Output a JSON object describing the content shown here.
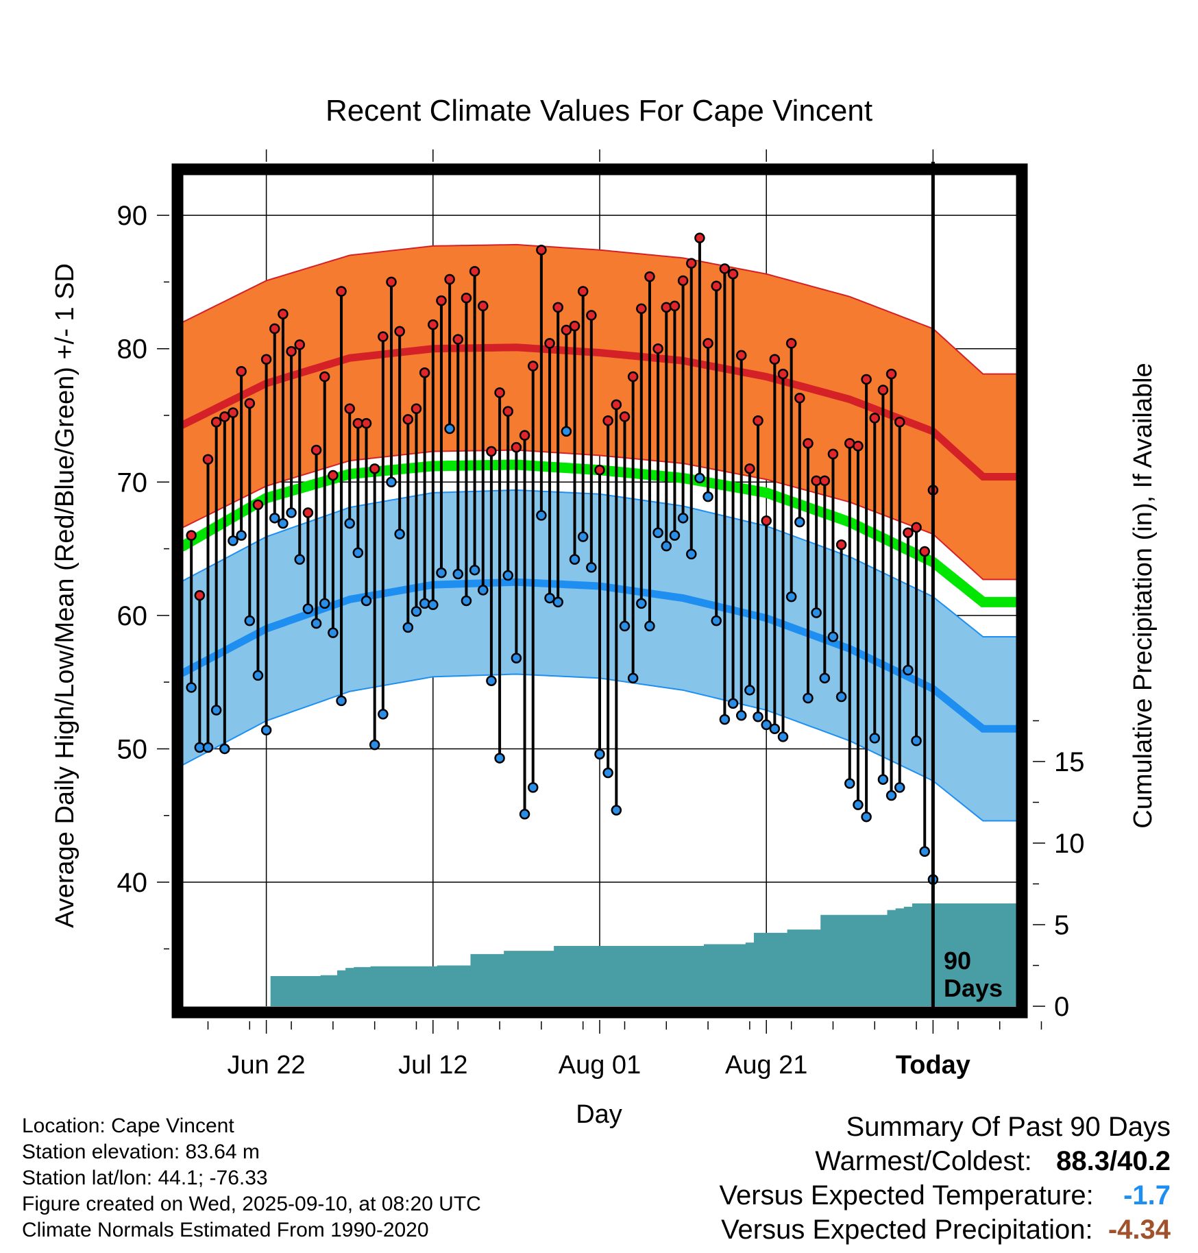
{
  "colors": {
    "high_band": "#f47b30",
    "high_line": "#d42027",
    "low_band": "#86c4ea",
    "low_line": "#1e8ff0",
    "mean_line": "#00e600",
    "precip_fill": "#499da5",
    "cold_value": "#1e8ff0",
    "dry_value": "#a0522d"
  },
  "chart_data": {
    "type": "line",
    "title": "Recent Climate Values For Cape Vincent",
    "xlabel": "Day",
    "ylabel": "Average Daily High/Low/Mean (Red/Blue/Green) +/- 1 SD",
    "ylabel_right": "Cumulative Precipitation (in), If Available",
    "x_range_days": [
      -87,
      13
    ],
    "ylim": [
      30.7,
      93.5
    ],
    "y_ticks": [
      40,
      50,
      60,
      70,
      80,
      90
    ],
    "precip_ticks": [
      0,
      5,
      10,
      15
    ],
    "precip_range": [
      0,
      20
    ],
    "x_ticks": [
      {
        "day": -77,
        "label": "Jun 22"
      },
      {
        "day": -57,
        "label": "Jul 12"
      },
      {
        "day": -37,
        "label": "Aug 01"
      },
      {
        "day": -17,
        "label": "Aug 21"
      },
      {
        "day": 3,
        "label": "Today"
      }
    ],
    "today_day": 3,
    "today_annotation": [
      "90",
      "Days"
    ],
    "normal_high": {
      "days": [
        -87,
        -77,
        -67,
        -57,
        -47,
        -37,
        -27,
        -17,
        -7,
        3,
        9
      ],
      "values": [
        74.3,
        77.4,
        79.3,
        80.0,
        80.1,
        79.7,
        79.1,
        77.9,
        76.2,
        73.8,
        70.4
      ]
    },
    "high_sd": 7.7,
    "normal_mean": {
      "days": [
        -87,
        -77,
        -67,
        -57,
        -47,
        -37,
        -27,
        -17,
        -7,
        3,
        9
      ],
      "values": [
        65.2,
        68.8,
        70.6,
        71.2,
        71.3,
        70.9,
        70.3,
        69.2,
        67.0,
        64.0,
        61.0
      ]
    },
    "normal_low": {
      "days": [
        -87,
        -77,
        -67,
        -57,
        -47,
        -37,
        -27,
        -17,
        -7,
        3,
        9
      ],
      "values": [
        55.7,
        59.0,
        61.2,
        62.3,
        62.5,
        62.2,
        61.3,
        59.8,
        57.5,
        54.5,
        51.5
      ]
    },
    "low_sd": 6.9,
    "daily_highs": [
      66.0,
      61.5,
      71.7,
      74.5,
      74.9,
      75.2,
      78.3,
      75.9,
      68.3,
      79.2,
      81.5,
      82.6,
      79.8,
      80.3,
      67.7,
      72.4,
      77.9,
      70.5,
      84.3,
      75.5,
      74.4,
      74.4,
      71.0,
      80.9,
      85.0,
      81.3,
      74.7,
      75.5,
      78.2,
      81.8,
      83.6,
      85.2,
      80.7,
      83.8,
      85.8,
      83.2,
      72.3,
      76.7,
      75.3,
      72.6,
      73.5,
      78.7,
      87.4,
      80.4,
      83.1,
      81.4,
      81.7,
      84.3,
      82.5,
      70.9,
      74.6,
      75.8,
      74.9,
      77.9,
      83.0,
      85.4,
      80.0,
      83.1,
      83.2,
      85.1,
      86.4,
      88.3,
      80.4,
      84.7,
      86.0,
      85.6,
      79.5,
      71.0,
      74.6,
      67.1,
      79.2,
      78.1,
      80.4,
      76.3,
      72.9,
      70.1,
      70.1,
      72.1,
      65.3,
      72.9,
      72.7,
      77.7,
      74.8,
      76.9,
      78.1,
      74.5,
      66.2,
      66.6,
      64.8,
      69.4
    ],
    "daily_lows": [
      54.6,
      50.1,
      50.1,
      52.9,
      50.0,
      65.6,
      66.0,
      59.6,
      55.5,
      51.4,
      67.3,
      66.9,
      67.7,
      64.2,
      60.5,
      59.4,
      60.9,
      58.7,
      53.6,
      66.9,
      64.7,
      61.1,
      50.3,
      52.6,
      70.0,
      66.1,
      59.1,
      60.3,
      60.9,
      60.8,
      63.2,
      74.0,
      63.1,
      61.1,
      63.4,
      61.9,
      55.1,
      49.3,
      63.0,
      56.8,
      45.1,
      47.1,
      67.5,
      61.3,
      61.0,
      73.8,
      64.2,
      65.9,
      63.6,
      49.6,
      48.2,
      45.4,
      59.2,
      55.3,
      60.9,
      59.2,
      66.2,
      65.2,
      66.0,
      67.3,
      64.6,
      70.3,
      68.9,
      59.6,
      52.2,
      53.4,
      52.5,
      54.4,
      52.4,
      51.8,
      51.5,
      50.9,
      61.4,
      67.0,
      53.8,
      60.2,
      55.3,
      58.4,
      53.9,
      47.4,
      45.8,
      44.9,
      50.8,
      47.7,
      46.5,
      47.1,
      55.9,
      50.6,
      42.3,
      40.2
    ],
    "cumulative_precip": [
      0.0,
      0.0,
      0.0,
      0.0,
      0.0,
      0.0,
      0.0,
      0.0,
      0.0,
      0.0,
      1.85,
      1.85,
      1.85,
      1.85,
      1.85,
      1.85,
      1.9,
      1.9,
      2.2,
      2.35,
      2.4,
      2.4,
      2.45,
      2.45,
      2.45,
      2.45,
      2.45,
      2.45,
      2.45,
      2.45,
      2.5,
      2.5,
      2.5,
      2.5,
      3.2,
      3.2,
      3.2,
      3.2,
      3.4,
      3.4,
      3.4,
      3.4,
      3.4,
      3.4,
      3.7,
      3.7,
      3.7,
      3.7,
      3.7,
      3.7,
      3.7,
      3.7,
      3.7,
      3.7,
      3.7,
      3.7,
      3.7,
      3.7,
      3.7,
      3.7,
      3.7,
      3.7,
      3.8,
      3.8,
      3.8,
      3.8,
      3.8,
      3.9,
      4.5,
      4.5,
      4.5,
      4.5,
      4.7,
      4.7,
      4.7,
      4.7,
      5.6,
      5.6,
      5.6,
      5.6,
      5.6,
      5.6,
      5.6,
      5.6,
      5.9,
      6.0,
      6.1,
      6.3,
      6.3,
      6.3,
      6.3
    ]
  },
  "info": {
    "location": "Location: Cape Vincent",
    "elevation": "Station elevation: 83.64 m",
    "latlon": "Station lat/lon: 44.1; -76.33",
    "created": "Figure created on Wed, 2025-09-10, at 08:20 UTC",
    "normals": "Climate Normals Estimated From 1990-2020"
  },
  "summary": {
    "title": "Summary Of Past 90 Days",
    "warm_cold_label": "Warmest/Coldest:",
    "warm_cold_value": "88.3/40.2",
    "temp_label": "Versus Expected Temperature:",
    "temp_value": "-1.7",
    "precip_label": "Versus Expected Precipitation:",
    "precip_value": "-4.34"
  }
}
